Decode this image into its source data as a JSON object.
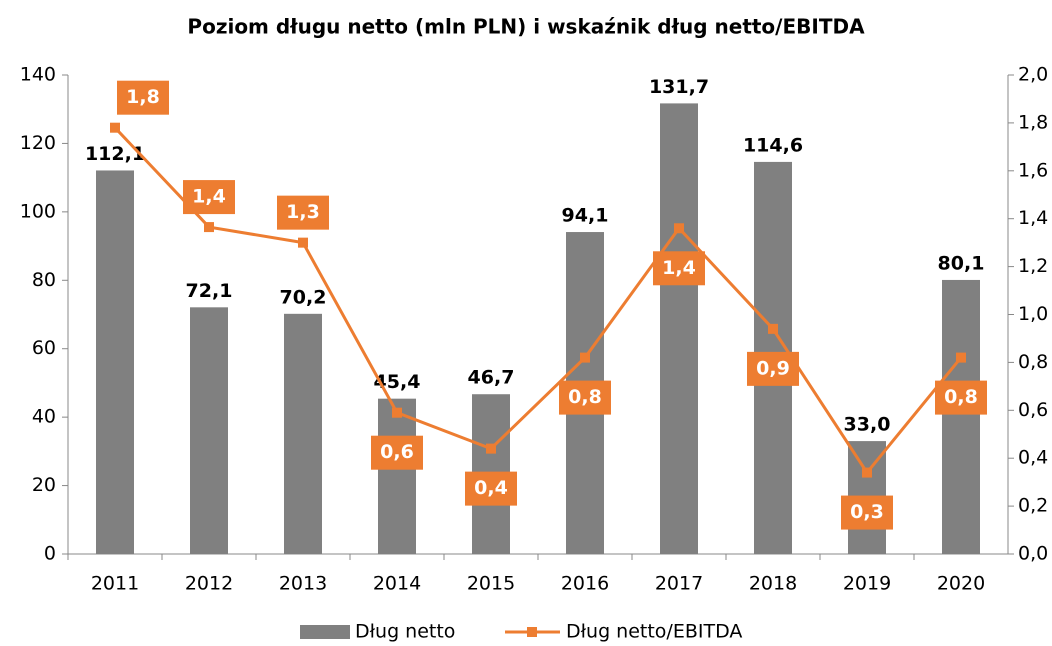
{
  "chart_data": {
    "type": "bar-line",
    "title": "Poziom długu netto (mln PLN) i wskaźnik dług netto/EBITDA",
    "categories": [
      "2011",
      "2012",
      "2013",
      "2014",
      "2015",
      "2016",
      "2017",
      "2018",
      "2019",
      "2020"
    ],
    "series": [
      {
        "name": "Dług netto",
        "type": "bar",
        "color": "#808080",
        "values": [
          112.1,
          72.1,
          70.2,
          45.4,
          46.7,
          94.1,
          131.7,
          114.6,
          33.0,
          80.1
        ],
        "value_labels": [
          "112,1",
          "72,1",
          "70,2",
          "45,4",
          "46,7",
          "94,1",
          "131,7",
          "114,6",
          "33,0",
          "80,1"
        ]
      },
      {
        "name": "Dług netto/EBITDA",
        "type": "line",
        "axis": "y2",
        "color": "#ED7D31",
        "values": [
          1.78,
          1.365,
          1.3,
          0.59,
          0.44,
          0.82,
          1.36,
          0.94,
          0.34,
          0.82
        ],
        "value_labels": [
          "1,8",
          "1,4",
          "1,3",
          "0,6",
          "0,4",
          "0,8",
          "1,4",
          "0,9",
          "0,3",
          "0,8"
        ]
      }
    ],
    "ylim": [
      0,
      140
    ],
    "yticks": [
      0,
      20,
      40,
      60,
      80,
      100,
      120,
      140
    ],
    "y2lim": [
      0,
      2.0
    ],
    "y2ticks": [
      {
        "value": 0,
        "label": "0,0"
      },
      {
        "value": 0.2,
        "label": "0,2"
      },
      {
        "value": 0.4,
        "label": "0,4"
      },
      {
        "value": 0.6,
        "label": "0,6"
      },
      {
        "value": 0.8,
        "label": "0,8"
      },
      {
        "value": 1.0,
        "label": "1,0"
      },
      {
        "value": 1.2,
        "label": "1,2"
      },
      {
        "value": 1.4,
        "label": "1,4"
      },
      {
        "value": 1.6,
        "label": "1,6"
      },
      {
        "value": 1.8,
        "label": "1,8"
      },
      {
        "value": 2.0,
        "label": "2,0"
      }
    ],
    "legend": "bottom"
  }
}
